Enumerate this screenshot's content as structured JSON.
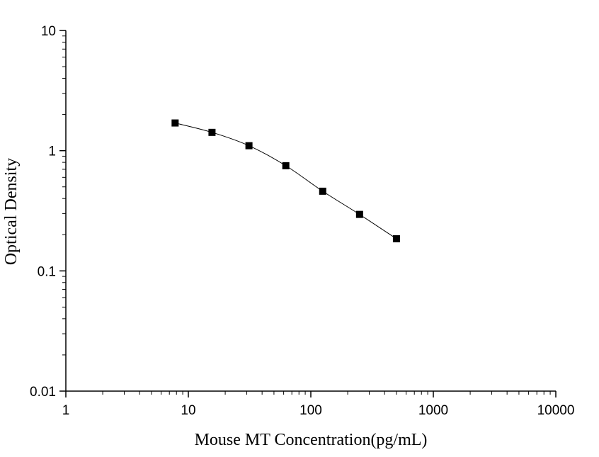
{
  "chart_data": {
    "type": "scatter",
    "xlabel": "Mouse MT Concentration(pg/mL)",
    "ylabel": "Optical Density",
    "xscale": "log",
    "yscale": "log",
    "xlim": [
      1,
      10000
    ],
    "ylim": [
      0.01,
      10
    ],
    "x_ticks": [
      1,
      10,
      100,
      1000,
      10000
    ],
    "x_tick_labels": [
      "1",
      "10",
      "100",
      "1000",
      "10000"
    ],
    "y_ticks": [
      0.01,
      0.1,
      1,
      10
    ],
    "y_tick_labels": [
      "0.01",
      "0.1",
      "1",
      "10"
    ],
    "grid": false,
    "series": [
      {
        "marker": "square",
        "line": "smooth",
        "color": "#000000",
        "points": [
          {
            "x": 7.8,
            "y": 1.7
          },
          {
            "x": 15.6,
            "y": 1.42
          },
          {
            "x": 31.25,
            "y": 1.1
          },
          {
            "x": 62.5,
            "y": 0.75
          },
          {
            "x": 125,
            "y": 0.46
          },
          {
            "x": 250,
            "y": 0.295
          },
          {
            "x": 500,
            "y": 0.185
          }
        ]
      }
    ]
  }
}
